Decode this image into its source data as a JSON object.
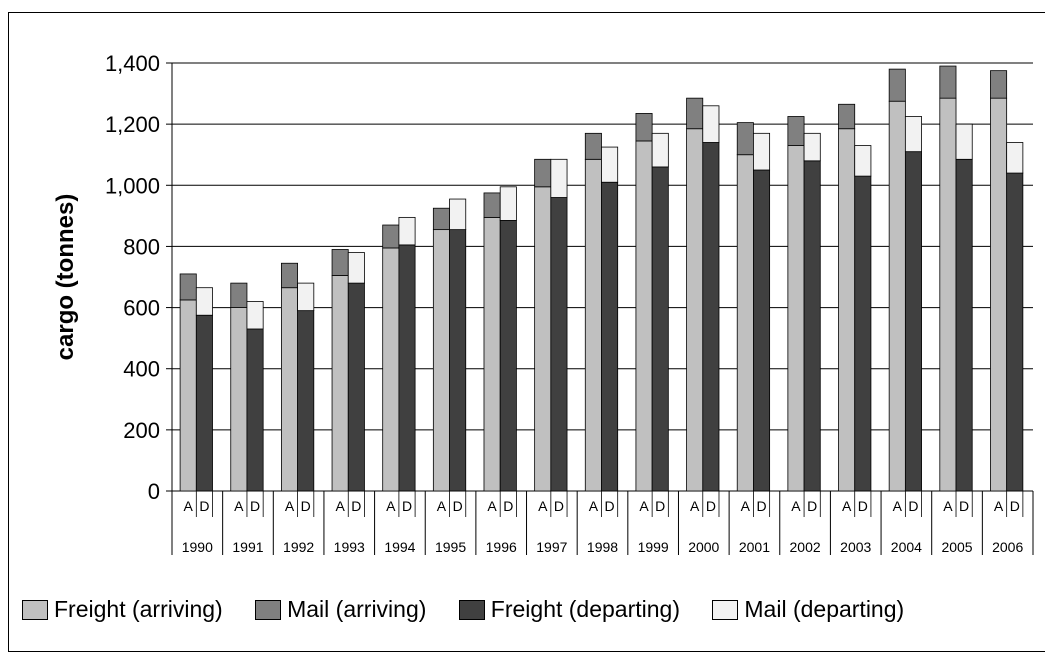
{
  "chart_data": {
    "type": "bar",
    "stacked": true,
    "ylabel": "cargo (tonnes)",
    "ylim": [
      0,
      1400
    ],
    "yticks": [
      "0",
      "200",
      "400",
      "600",
      "800",
      "1,000",
      "1,200",
      "1,400"
    ],
    "grid": true,
    "years": [
      "1990",
      "1991",
      "1992",
      "1993",
      "1994",
      "1995",
      "1996",
      "1997",
      "1998",
      "1999",
      "2000",
      "2001",
      "2002",
      "2003",
      "2004",
      "2005",
      "2006"
    ],
    "bar_labels": {
      "arriving": "A",
      "departing": "D"
    },
    "arriving": {
      "freight": [
        625,
        600,
        665,
        705,
        795,
        855,
        895,
        995,
        1085,
        1145,
        1185,
        1100,
        1130,
        1185,
        1275,
        1285,
        1285
      ],
      "mail": [
        85,
        80,
        80,
        85,
        75,
        70,
        80,
        90,
        85,
        90,
        100,
        105,
        95,
        80,
        105,
        105,
        90
      ]
    },
    "departing": {
      "freight": [
        575,
        530,
        590,
        680,
        805,
        855,
        885,
        960,
        1010,
        1060,
        1140,
        1050,
        1080,
        1030,
        1110,
        1085,
        1040
      ],
      "mail": [
        90,
        90,
        90,
        100,
        90,
        100,
        110,
        125,
        115,
        110,
        120,
        120,
        90,
        100,
        115,
        115,
        100
      ]
    },
    "legend": {
      "placement": "bottom",
      "entries": [
        {
          "label": "Freight (arriving)",
          "color": "#c0c0c0"
        },
        {
          "label": "Mail (arriving)",
          "color": "#808080"
        },
        {
          "label": "Freight (departing)",
          "color": "#404040"
        },
        {
          "label": "Mail (departing)",
          "color": "#f2f2f2"
        }
      ]
    }
  }
}
